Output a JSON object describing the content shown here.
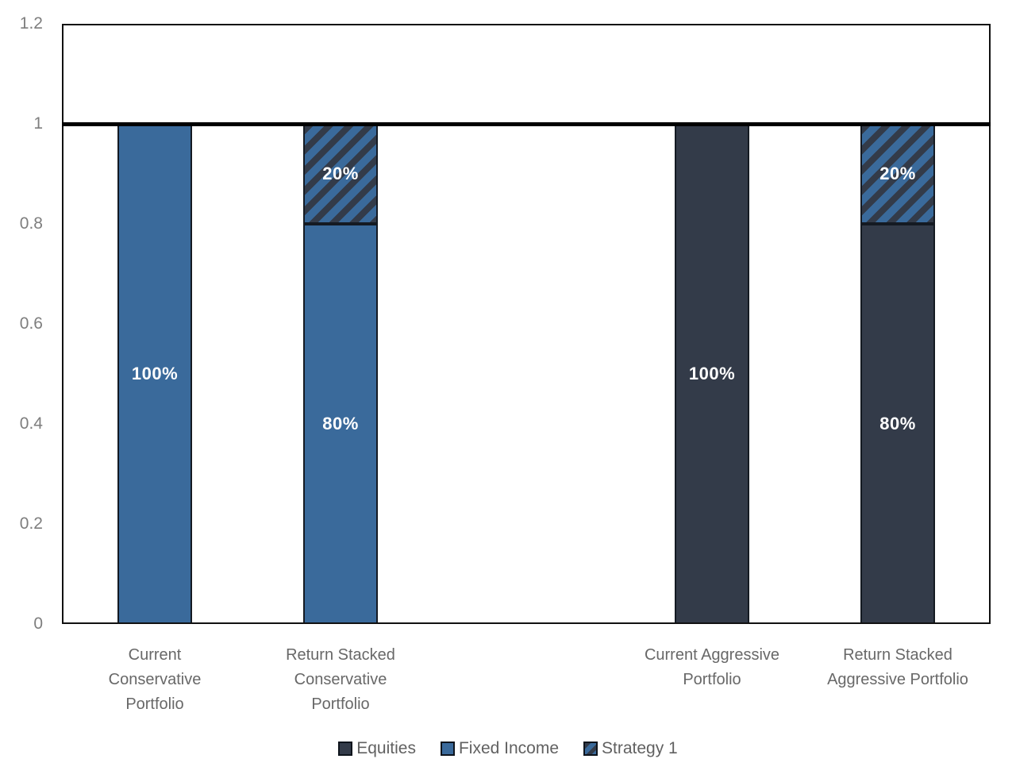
{
  "chart_data": {
    "type": "bar",
    "subtype": "stacked-columns",
    "title": "",
    "xlabel": "",
    "ylabel": "",
    "grid": false,
    "legend_position": "bottom",
    "y_axis": {
      "min": 0,
      "max": 1.2,
      "tick_step": 0.2,
      "ticks": [
        "0",
        "0.2",
        "0.4",
        "0.6",
        "0.8",
        "1",
        "1.2"
      ]
    },
    "reference_line": {
      "value": 1,
      "color": "#000000"
    },
    "slot_count": 5,
    "series": [
      {
        "name": "Equities",
        "color": "#333B49",
        "pattern": "solid"
      },
      {
        "name": "Fixed Income",
        "color": "#3A6A9B",
        "pattern": "solid"
      },
      {
        "name": "Strategy 1",
        "color": "#3A6A9B",
        "pattern": "diagonal-hatch",
        "pattern_color": "#333B49"
      }
    ],
    "legend": [
      "Equities",
      "Fixed Income",
      "Strategy 1"
    ],
    "categories": [
      {
        "slot": 0,
        "label": "Current Conservative Portfolio",
        "label_lines": [
          "Current",
          "Conservative",
          "Portfolio"
        ],
        "segments": [
          {
            "series": "Fixed Income",
            "value": 1.0,
            "label": "100%"
          }
        ]
      },
      {
        "slot": 1,
        "label": "Return Stacked Conservative Portfolio",
        "label_lines": [
          "Return Stacked",
          "Conservative",
          "Portfolio"
        ],
        "segments": [
          {
            "series": "Fixed Income",
            "value": 0.8,
            "label": "80%"
          },
          {
            "series": "Strategy 1",
            "value": 0.2,
            "label": "20%"
          }
        ]
      },
      {
        "slot": 3,
        "label": "Current Aggressive Portfolio",
        "label_lines": [
          "Current Aggressive",
          "Portfolio"
        ],
        "segments": [
          {
            "series": "Equities",
            "value": 1.0,
            "label": "100%"
          }
        ]
      },
      {
        "slot": 4,
        "label": "Return Stacked Aggressive Portfolio",
        "label_lines": [
          "Return Stacked",
          "Aggressive Portfolio"
        ],
        "segments": [
          {
            "series": "Equities",
            "value": 0.8,
            "label": "80%"
          },
          {
            "series": "Strategy 1",
            "value": 0.2,
            "label": "20%"
          }
        ]
      }
    ],
    "colors": {
      "axis_text": "#7E7E7E",
      "category_text": "#686868",
      "legend_text": "#616161",
      "data_label_text": "#FFFFFF",
      "plot_border": "#111111",
      "bar_border": "#141A22",
      "reference_line": "#000000",
      "background": "#FFFFFF"
    }
  }
}
